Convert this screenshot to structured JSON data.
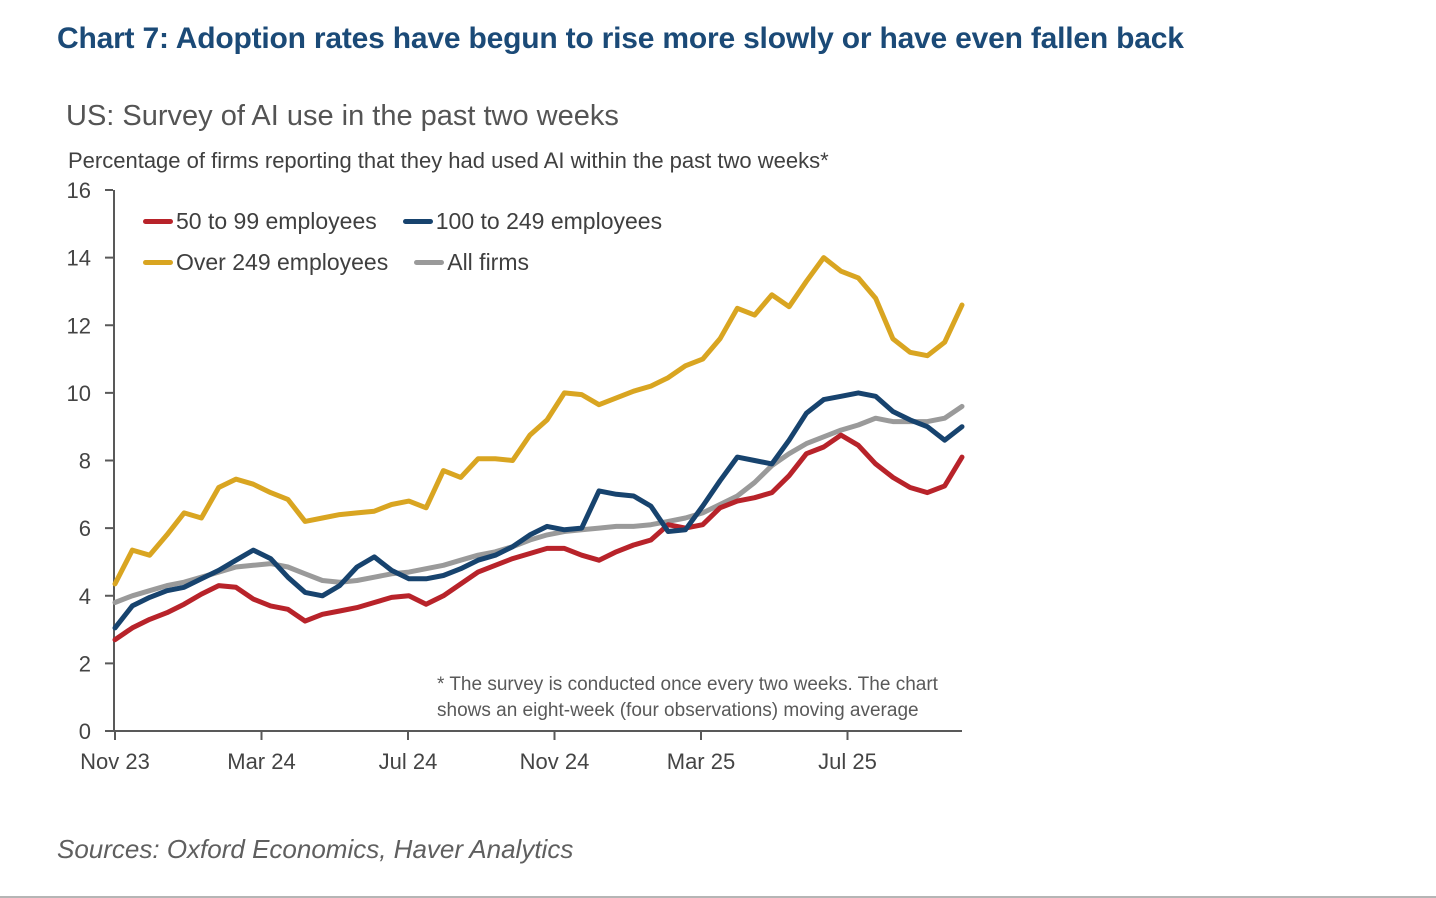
{
  "page": {
    "title": "Chart 7: Adoption rates have begun to rise more slowly or have even fallen back",
    "subtitle": "US: Survey of AI use in the past two weeks",
    "y_axis_note": "Percentage of firms reporting that they had used AI within the past two weeks*",
    "footnote_line1": "* The survey is conducted once every two weeks. The chart",
    "footnote_line2": "shows an eight-week (four observations) moving average",
    "sources": "Sources: Oxford Economics, Haver Analytics"
  },
  "colors": {
    "title_navy": "#1B4A77",
    "axis": "#595959",
    "tick_label": "#444444"
  },
  "chart_data": {
    "type": "line",
    "title": "US: Survey of AI use in the past two weeks",
    "ylabel": "Percentage of firms reporting that they had used AI within the past two weeks*",
    "xlabel": "",
    "ylim": [
      0,
      16
    ],
    "ytick_step": 2,
    "grid": false,
    "legend_position": "top-left-inside",
    "x_unit": "biweekly survey observations, Nov 2023 - Oct 2025",
    "x_tick_labels": [
      "Nov 23",
      "Mar 24",
      "Jul 24",
      "Nov 24",
      "Mar 25",
      "Jul 25"
    ],
    "series": [
      {
        "name": "50 to 99 employees",
        "color": "#B8232A",
        "values": [
          2.7,
          3.05,
          3.3,
          3.5,
          3.75,
          4.05,
          4.3,
          4.25,
          3.9,
          3.7,
          3.6,
          3.25,
          3.45,
          3.55,
          3.65,
          3.8,
          3.95,
          4.0,
          3.75,
          4.0,
          4.35,
          4.7,
          4.9,
          5.1,
          5.25,
          5.4,
          5.4,
          5.2,
          5.05,
          5.3,
          5.5,
          5.65,
          6.1,
          6.0,
          6.1,
          6.6,
          6.8,
          6.9,
          7.05,
          7.55,
          8.2,
          8.4,
          8.75,
          8.45,
          7.9,
          7.5,
          7.2,
          7.05,
          7.25,
          8.1
        ]
      },
      {
        "name": "100 to 249 employees",
        "color": "#17436E",
        "values": [
          3.05,
          3.7,
          3.95,
          4.15,
          4.25,
          4.5,
          4.75,
          5.05,
          5.35,
          5.1,
          4.55,
          4.1,
          4.0,
          4.3,
          4.85,
          5.15,
          4.75,
          4.5,
          4.5,
          4.6,
          4.8,
          5.05,
          5.2,
          5.45,
          5.8,
          6.05,
          5.95,
          6.0,
          7.1,
          7.0,
          6.95,
          6.65,
          5.9,
          5.95,
          6.65,
          7.4,
          8.1,
          8.0,
          7.9,
          8.6,
          9.4,
          9.8,
          9.9,
          10.0,
          9.9,
          9.45,
          9.2,
          9.0,
          8.6,
          9.0
        ]
      },
      {
        "name": "Over 249 employees",
        "color": "#D9A521",
        "values": [
          4.35,
          5.35,
          5.2,
          5.8,
          6.45,
          6.3,
          7.2,
          7.45,
          7.3,
          7.05,
          6.85,
          6.2,
          6.3,
          6.4,
          6.45,
          6.5,
          6.7,
          6.8,
          6.6,
          7.7,
          7.5,
          8.05,
          8.05,
          8.0,
          8.75,
          9.2,
          10.0,
          9.95,
          9.65,
          9.85,
          10.05,
          10.2,
          10.45,
          10.8,
          11.0,
          11.6,
          12.5,
          12.3,
          12.9,
          12.55,
          13.3,
          14.0,
          13.6,
          13.4,
          12.8,
          11.6,
          11.2,
          11.1,
          11.5,
          12.6
        ]
      },
      {
        "name": "All firms",
        "color": "#9A9A9A",
        "values": [
          3.8,
          4.0,
          4.15,
          4.3,
          4.4,
          4.55,
          4.7,
          4.85,
          4.9,
          4.95,
          4.85,
          4.65,
          4.45,
          4.4,
          4.45,
          4.55,
          4.65,
          4.7,
          4.8,
          4.9,
          5.05,
          5.2,
          5.3,
          5.45,
          5.65,
          5.8,
          5.9,
          5.95,
          6.0,
          6.05,
          6.05,
          6.1,
          6.2,
          6.3,
          6.45,
          6.7,
          6.95,
          7.35,
          7.85,
          8.2,
          8.5,
          8.7,
          8.9,
          9.05,
          9.25,
          9.15,
          9.15,
          9.15,
          9.25,
          9.6
        ]
      }
    ]
  }
}
